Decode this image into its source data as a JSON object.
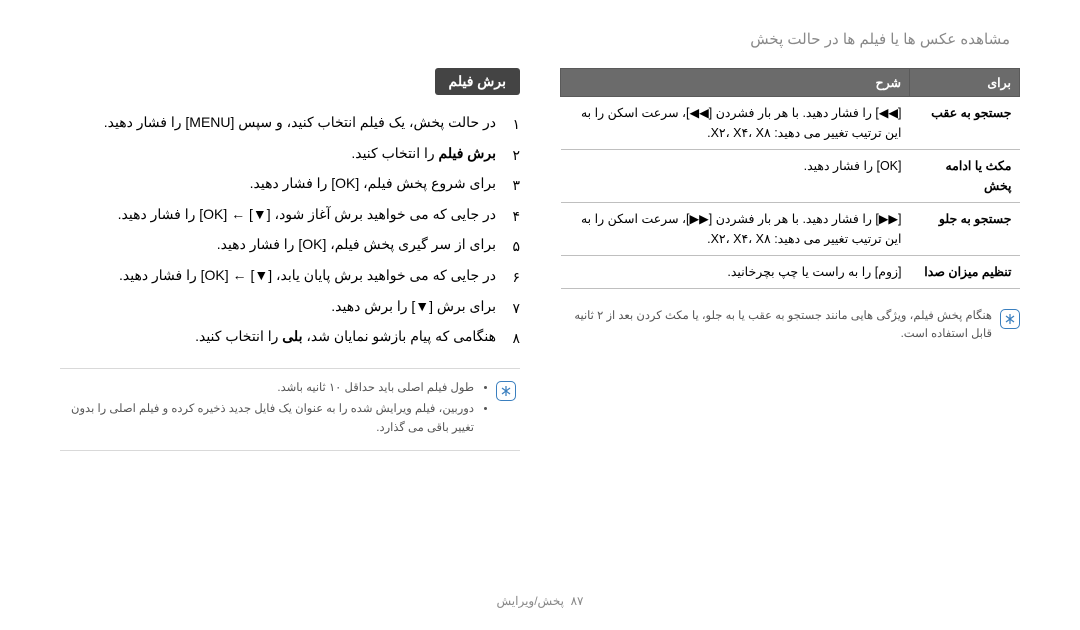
{
  "header": "مشاهده عکس ها یا فیلم ها در حالت پخش",
  "table": {
    "columns": [
      "برای",
      "شرح"
    ],
    "rows": [
      {
        "for": "جستجو به عقب",
        "desc": "[◀◀] را فشار دهید. با هر بار فشردن [◀◀]، سرعت اسکن را به این ترتیب تغییر می دهید: X۲، X۴، X۸."
      },
      {
        "for": "مکث یا ادامه پخش",
        "desc": "[OK] را فشار دهید."
      },
      {
        "for": "جستجو به جلو",
        "desc": "[▶▶] را فشار دهید. با هر بار فشردن [▶▶]، سرعت اسکن را به این ترتیب تغییر می دهید: X۲، X۴، X۸."
      },
      {
        "for": "تنظیم میزان صدا",
        "desc": "[زوم] را به راست یا چپ بچرخانید."
      }
    ]
  },
  "note1": "هنگام پخش فیلم، ویژگی هایی مانند جستجو به عقب یا به جلو، یا مکث کردن بعد از ۲ ثانیه قابل استفاده است.",
  "section_title": "برش فیلم",
  "steps": [
    "در حالت پخش، یک فیلم انتخاب کنید، و سپس [MENU] را فشار دهید.",
    "<span class='bold'>برش فیلم</span> را انتخاب کنید.",
    "برای شروع پخش فیلم، [OK] را فشار دهید.",
    "در جایی که می خواهید برش آغاز شود، [▼] ← [OK] را فشار دهید.",
    "برای از سر گیری پخش فیلم، [OK] را فشار دهید.",
    "در جایی که می خواهید برش پایان یابد، [▼] ← [OK] را فشار دهید.",
    "برای برش [▼] را برش دهید.",
    "هنگامی که پیام بازشو نمایان شد، <span class='bold'>بلی</span> را انتخاب کنید."
  ],
  "note2": [
    "طول فیلم اصلی باید حداقل ۱۰ ثانیه باشد.",
    "دوربین، فیلم ویرایش شده را به عنوان یک فایل جدید ذخیره کرده و فیلم اصلی را بدون تغییر باقی می گذارد."
  ],
  "footer_label": "پخش/ویرایش",
  "footer_page": "۸۷",
  "persian_numerals": [
    "۱",
    "۲",
    "۳",
    "۴",
    "۵",
    "۶",
    "۷",
    "۸"
  ]
}
